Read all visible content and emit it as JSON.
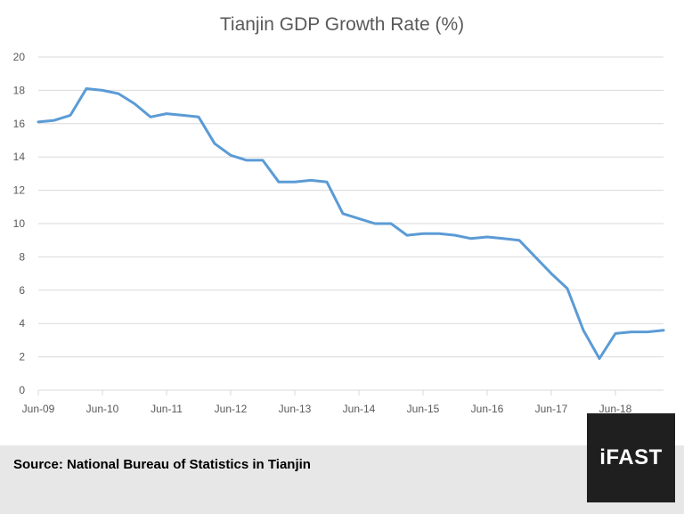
{
  "chart_data": {
    "type": "line",
    "title": "Tianjin GDP Growth Rate (%)",
    "xlabel": "",
    "ylabel": "",
    "ylim": [
      0,
      20
    ],
    "yticks": [
      0,
      2,
      4,
      6,
      8,
      10,
      12,
      14,
      16,
      18,
      20
    ],
    "grid": true,
    "legend": "none",
    "x_tick_labels": [
      "Jun-09",
      "Jun-10",
      "Jun-11",
      "Jun-12",
      "Jun-13",
      "Jun-14",
      "Jun-15",
      "Jun-16",
      "Jun-17",
      "Jun-18"
    ],
    "line_color": "#5b9bd5",
    "series": [
      {
        "x": [
          2009.0,
          2009.25,
          2009.5,
          2009.75,
          2010.0,
          2010.25,
          2010.5,
          2010.75,
          2011.0,
          2011.25,
          2011.5,
          2011.75,
          2012.0,
          2012.25,
          2012.5,
          2012.75,
          2013.0,
          2013.25,
          2013.5,
          2013.75,
          2014.0,
          2014.25,
          2014.5,
          2014.75,
          2015.0,
          2015.25,
          2015.5,
          2015.75,
          2016.0,
          2016.25,
          2016.5,
          2016.75,
          2017.0,
          2017.25,
          2017.5,
          2017.75,
          2018.0,
          2018.25,
          2018.5,
          2018.75
        ],
        "values": [
          16.1,
          16.2,
          16.5,
          18.1,
          18.0,
          17.8,
          17.2,
          16.4,
          16.6,
          16.5,
          16.4,
          14.8,
          14.1,
          13.8,
          13.8,
          12.5,
          12.5,
          12.6,
          12.5,
          10.6,
          10.3,
          10.0,
          10.0,
          9.3,
          9.4,
          9.4,
          9.3,
          9.1,
          9.2,
          9.1,
          9.0,
          8.0,
          7.0,
          6.1,
          3.6,
          1.9,
          3.4,
          3.5,
          3.5,
          3.6
        ]
      }
    ]
  },
  "footer": {
    "source": "Source: National Bureau of Statistics in Tianjin",
    "logo": "iFAST"
  }
}
